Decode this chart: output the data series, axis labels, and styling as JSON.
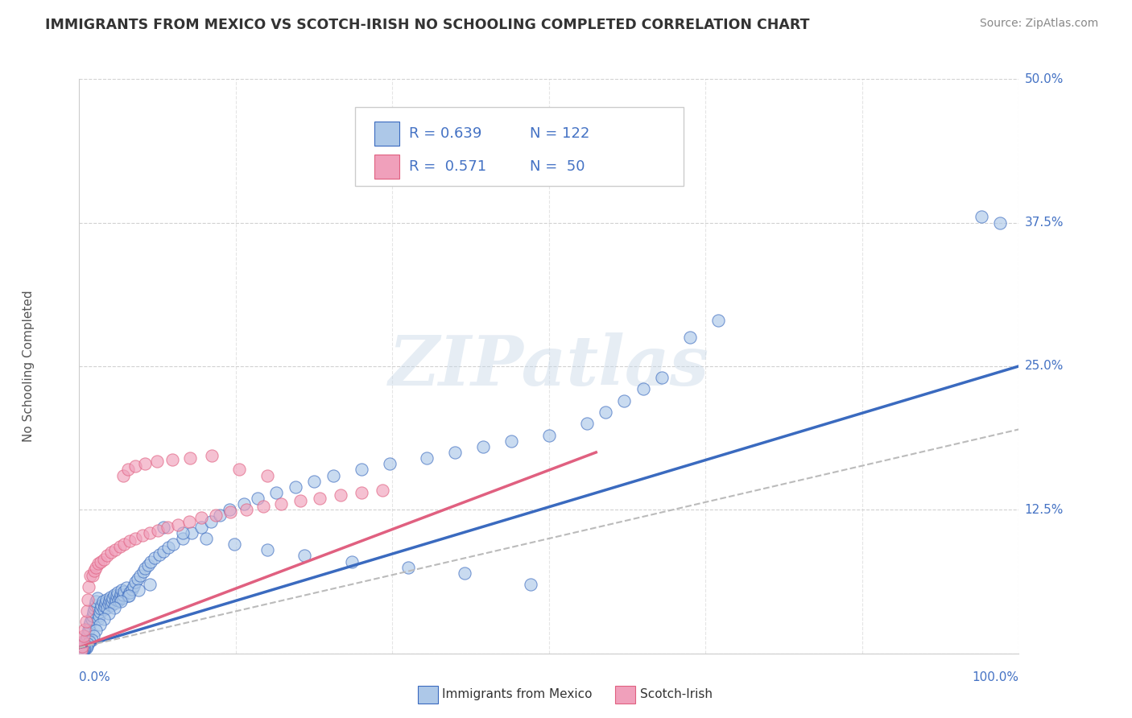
{
  "title": "IMMIGRANTS FROM MEXICO VS SCOTCH-IRISH NO SCHOOLING COMPLETED CORRELATION CHART",
  "source": "Source: ZipAtlas.com",
  "ylabel": "No Schooling Completed",
  "xlim": [
    0,
    1.0
  ],
  "ylim": [
    0,
    0.5
  ],
  "ytick_positions": [
    0.0,
    0.125,
    0.25,
    0.375,
    0.5
  ],
  "ytick_labels": [
    "",
    "12.5%",
    "25.0%",
    "37.5%",
    "50.0%"
  ],
  "color_blue": "#adc8e8",
  "color_pink": "#f0a0bb",
  "line_blue": "#3a6abf",
  "line_pink": "#e06080",
  "line_gray": "#bbbbbb",
  "watermark": "ZIPatlas",
  "background": "#ffffff",
  "grid_color": "#cccccc",
  "title_color": "#333333",
  "r_n_color": "#4472c4",
  "scatter_blue_x": [
    0.002,
    0.003,
    0.004,
    0.005,
    0.006,
    0.007,
    0.008,
    0.009,
    0.01,
    0.011,
    0.012,
    0.013,
    0.014,
    0.015,
    0.016,
    0.017,
    0.018,
    0.019,
    0.02,
    0.021,
    0.022,
    0.023,
    0.024,
    0.025,
    0.026,
    0.027,
    0.028,
    0.029,
    0.03,
    0.031,
    0.032,
    0.033,
    0.034,
    0.035,
    0.036,
    0.037,
    0.038,
    0.039,
    0.04,
    0.041,
    0.042,
    0.043,
    0.044,
    0.045,
    0.046,
    0.047,
    0.048,
    0.05,
    0.052,
    0.054,
    0.056,
    0.058,
    0.06,
    0.062,
    0.065,
    0.068,
    0.07,
    0.073,
    0.076,
    0.08,
    0.085,
    0.09,
    0.095,
    0.1,
    0.11,
    0.12,
    0.13,
    0.14,
    0.15,
    0.16,
    0.175,
    0.19,
    0.21,
    0.23,
    0.25,
    0.27,
    0.3,
    0.33,
    0.37,
    0.4,
    0.43,
    0.46,
    0.5,
    0.54,
    0.56,
    0.58,
    0.6,
    0.62,
    0.65,
    0.68,
    0.48,
    0.41,
    0.35,
    0.29,
    0.24,
    0.2,
    0.165,
    0.135,
    0.11,
    0.09,
    0.075,
    0.063,
    0.053,
    0.044,
    0.037,
    0.031,
    0.026,
    0.022,
    0.018,
    0.015,
    0.013,
    0.011,
    0.009,
    0.008,
    0.007,
    0.006,
    0.005,
    0.004,
    0.003,
    0.002,
    0.96,
    0.98
  ],
  "scatter_blue_y": [
    0.002,
    0.004,
    0.006,
    0.008,
    0.01,
    0.012,
    0.015,
    0.018,
    0.021,
    0.024,
    0.027,
    0.03,
    0.033,
    0.036,
    0.039,
    0.042,
    0.045,
    0.048,
    0.03,
    0.033,
    0.036,
    0.039,
    0.042,
    0.045,
    0.038,
    0.041,
    0.044,
    0.047,
    0.04,
    0.043,
    0.046,
    0.049,
    0.042,
    0.045,
    0.048,
    0.051,
    0.044,
    0.047,
    0.05,
    0.053,
    0.046,
    0.049,
    0.052,
    0.055,
    0.048,
    0.051,
    0.054,
    0.057,
    0.05,
    0.053,
    0.056,
    0.059,
    0.062,
    0.065,
    0.068,
    0.071,
    0.074,
    0.077,
    0.08,
    0.083,
    0.086,
    0.089,
    0.092,
    0.095,
    0.1,
    0.105,
    0.11,
    0.115,
    0.12,
    0.125,
    0.13,
    0.135,
    0.14,
    0.145,
    0.15,
    0.155,
    0.16,
    0.165,
    0.17,
    0.175,
    0.18,
    0.185,
    0.19,
    0.2,
    0.21,
    0.22,
    0.23,
    0.24,
    0.275,
    0.29,
    0.06,
    0.07,
    0.075,
    0.08,
    0.085,
    0.09,
    0.095,
    0.1,
    0.105,
    0.11,
    0.06,
    0.055,
    0.05,
    0.045,
    0.04,
    0.035,
    0.03,
    0.025,
    0.02,
    0.015,
    0.012,
    0.01,
    0.008,
    0.006,
    0.005,
    0.004,
    0.003,
    0.003,
    0.002,
    0.002,
    0.38,
    0.375
  ],
  "scatter_pink_x": [
    0.002,
    0.003,
    0.004,
    0.005,
    0.006,
    0.007,
    0.008,
    0.009,
    0.01,
    0.012,
    0.014,
    0.016,
    0.018,
    0.02,
    0.023,
    0.026,
    0.03,
    0.034,
    0.038,
    0.043,
    0.048,
    0.054,
    0.06,
    0.067,
    0.075,
    0.084,
    0.094,
    0.105,
    0.117,
    0.13,
    0.145,
    0.161,
    0.178,
    0.196,
    0.215,
    0.235,
    0.256,
    0.278,
    0.3,
    0.323,
    0.047,
    0.052,
    0.06,
    0.07,
    0.083,
    0.099,
    0.118,
    0.141,
    0.17,
    0.2
  ],
  "scatter_pink_y": [
    0.003,
    0.006,
    0.01,
    0.015,
    0.021,
    0.028,
    0.037,
    0.047,
    0.058,
    0.068,
    0.068,
    0.072,
    0.075,
    0.078,
    0.08,
    0.082,
    0.085,
    0.088,
    0.09,
    0.093,
    0.095,
    0.098,
    0.1,
    0.103,
    0.105,
    0.107,
    0.11,
    0.112,
    0.115,
    0.118,
    0.12,
    0.123,
    0.125,
    0.128,
    0.13,
    0.133,
    0.135,
    0.138,
    0.14,
    0.142,
    0.155,
    0.16,
    0.163,
    0.165,
    0.167,
    0.169,
    0.17,
    0.172,
    0.16,
    0.155
  ],
  "blue_trend_x": [
    0.0,
    1.0
  ],
  "blue_trend_y": [
    0.005,
    0.25
  ],
  "pink_trend_x": [
    0.0,
    0.55
  ],
  "pink_trend_y": [
    0.005,
    0.175
  ],
  "gray_trend_x": [
    0.0,
    1.0
  ],
  "gray_trend_y": [
    0.005,
    0.195
  ],
  "legend_label1": "Immigrants from Mexico",
  "legend_label2": "Scotch-Irish"
}
